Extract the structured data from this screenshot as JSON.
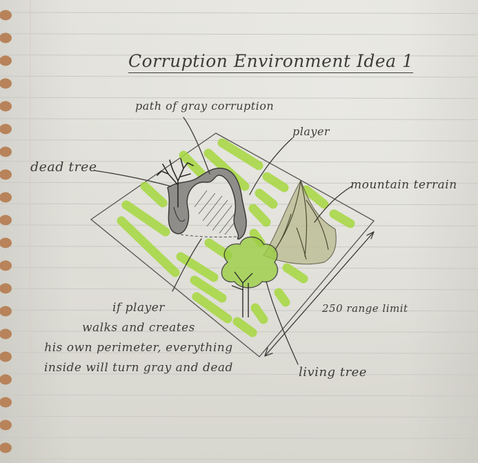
{
  "page": {
    "paper_color": "#e2e1db",
    "ink_color": "#3d3c3a",
    "highlight_color": "#9fd43a"
  },
  "title": "Corruption Environment Idea 1",
  "labels": {
    "path": "path of gray corruption",
    "player": "player",
    "dead_tree": "dead tree",
    "mountain": "mountain terrain",
    "range": "250 range limit",
    "living_tree": "living tree"
  },
  "note_lines": [
    "if player",
    "walks and creates",
    "his own perimeter, everything",
    "inside will turn gray and dead"
  ]
}
